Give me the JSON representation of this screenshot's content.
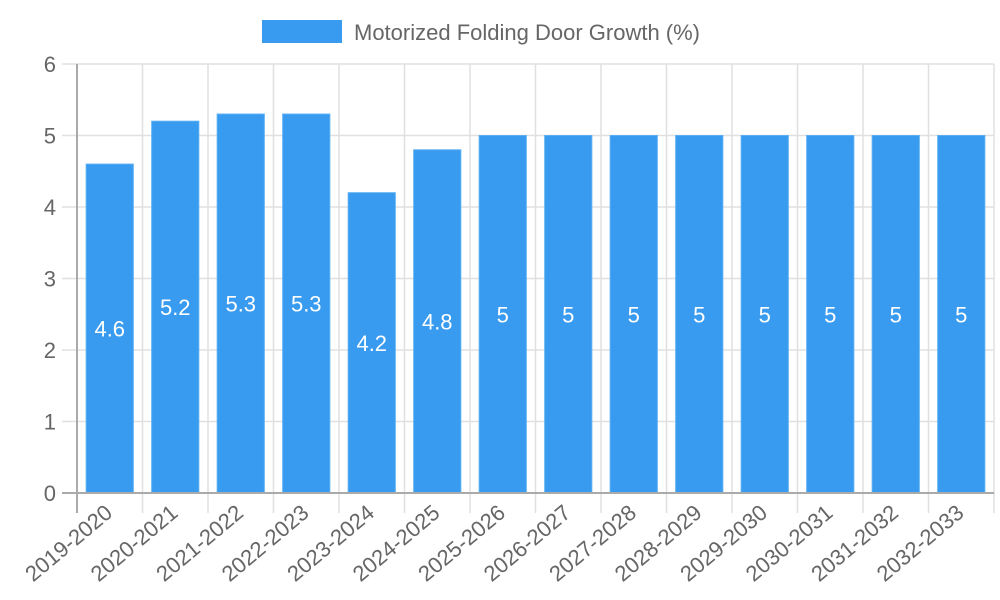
{
  "chart_data": {
    "type": "bar",
    "title": "",
    "legend": {
      "position": "top",
      "entries": [
        "Motorized Folding Door Growth (%)"
      ]
    },
    "categories": [
      "2019-2020",
      "2020-2021",
      "2021-2022",
      "2022-2023",
      "2023-2024",
      "2024-2025",
      "2025-2026",
      "2026-2027",
      "2027-2028",
      "2028-2029",
      "2029-2030",
      "2030-2031",
      "2031-2032",
      "2032-2033"
    ],
    "series": [
      {
        "name": "Motorized Folding Door Growth (%)",
        "color": "#389BF0",
        "values": [
          4.6,
          5.2,
          5.3,
          5.3,
          4.2,
          4.8,
          5,
          5,
          5,
          5,
          5,
          5,
          5,
          5
        ],
        "labels": [
          "4.6",
          "5.2",
          "5.3",
          "5.3",
          "4.2",
          "4.8",
          "5",
          "5",
          "5",
          "5",
          "5",
          "5",
          "5",
          "5"
        ]
      }
    ],
    "xlabel": "",
    "ylabel": "",
    "ylim": [
      0,
      6
    ],
    "yticks": [
      "0",
      "1",
      "2",
      "3",
      "4",
      "5",
      "6"
    ],
    "grid": true,
    "xtick_rotation": -40
  },
  "colors": {
    "bar": "#389BF0",
    "grid": "#E0E0E0",
    "axis": "#AAAAAA",
    "text": "#666666"
  }
}
